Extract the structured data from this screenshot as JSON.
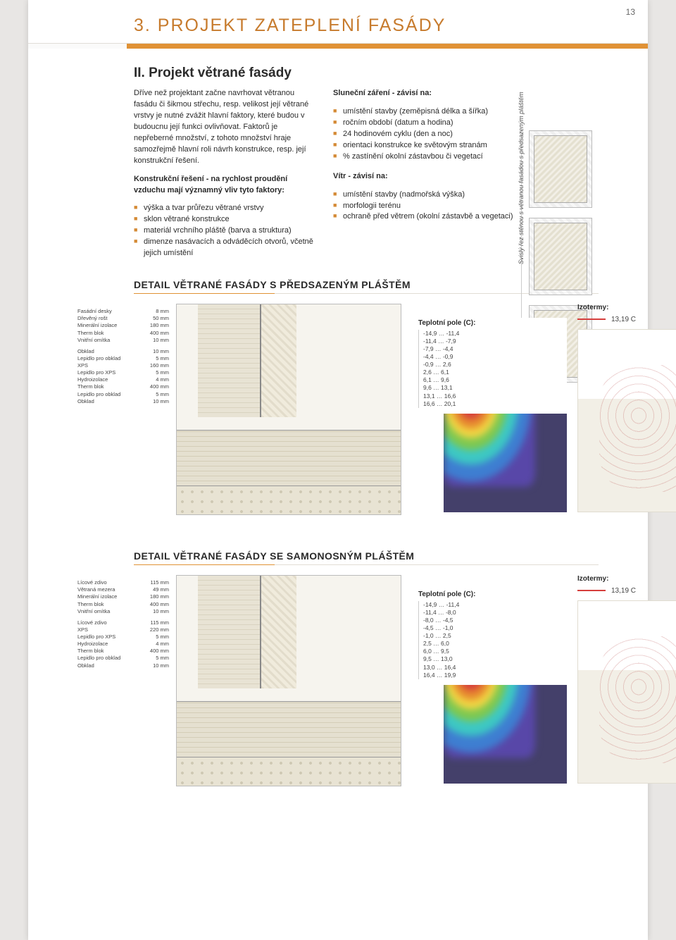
{
  "page_number": "13",
  "main_title": "3. PROJEKT ZATEPLENÍ FASÁDY",
  "section_title": "II. Projekt větrané fasády",
  "intro_text": "Dříve než projektant začne navrhovat větranou fasádu či šikmou střechu, resp. velikost její větrané vrstvy je nutné zvážit hlavní faktory, které budou v budoucnu její funkci ovlivňovat. Faktorů je nepřeberné množství, z tohoto množství hraje samozřejmě hlavní roli návrh konstrukce, resp. její konstrukční řešení.",
  "konstr_lead": "Konstrukční řešení - na rychlost proudění vzduchu mají významný vliv tyto faktory:",
  "konstr_items": [
    "výška a tvar průřezu větrané vrstvy",
    "sklon větrané konstrukce",
    "materiál vrchního pláště (barva a struktura)",
    "dimenze nasávacích a odváděcích otvorů, včetně jejich umístění"
  ],
  "sun_lead": "Sluneční záření - závisí na:",
  "sun_items": [
    "umístění stavby (zeměpisná délka a šířka)",
    "ročním období (datum a hodina)",
    "24 hodinovém cyklu (den a noc)",
    "orientaci konstrukce ke světovým stranám",
    "% zastínění okolní zástavbou či vegetací"
  ],
  "wind_lead": "Vítr - závisí na:",
  "wind_items": [
    "umístění stavby (nadmořská výška)",
    "morfologii terénu",
    "ochraně před větrem (okolní zástavbě a vegetaci)"
  ],
  "side_caption": "Svislý řez stěnou s větranou fasádou s předsazeným pláštěm",
  "detail1_heading": "DETAIL VĚTRANÉ FASÁDY S PŘEDSAZENÝM PLÁŠTĚM",
  "detail2_heading": "DETAIL VĚTRANÉ FASÁDY SE SAMONOSNÝM PLÁŠTĚM",
  "layers1": [
    [
      "Fasádní desky",
      "8 mm"
    ],
    [
      "Dřevěný rošt",
      "50 mm"
    ],
    [
      "Minerální izolace",
      "180 mm"
    ],
    [
      "Therm blok",
      "400 mm"
    ],
    [
      "Vnitřní omítka",
      "10 mm"
    ],
    [
      "gap",
      ""
    ],
    [
      "Obklad",
      "10 mm"
    ],
    [
      "Lepidlo pro obklad",
      "5 mm"
    ],
    [
      "XPS",
      "160 mm"
    ],
    [
      "Lepidlo pro XPS",
      "5 mm"
    ],
    [
      "Hydroizolace",
      "4 mm"
    ],
    [
      "Therm blok",
      "400 mm"
    ],
    [
      "Lepidlo pro obklad",
      "5 mm"
    ],
    [
      "Obklad",
      "10 mm"
    ]
  ],
  "layers2": [
    [
      "Lícové zdivo",
      "115 mm"
    ],
    [
      "Větraná mezera",
      "49 mm"
    ],
    [
      "Minerální izolace",
      "180 mm"
    ],
    [
      "Therm blok",
      "400 mm"
    ],
    [
      "Vnitřní omítka",
      "10 mm"
    ],
    [
      "gap",
      ""
    ],
    [
      "Lícové zdivo",
      "115 mm"
    ],
    [
      "XPS",
      "220 mm"
    ],
    [
      "Lepidlo pro XPS",
      "5 mm"
    ],
    [
      "Hydroizolace",
      "4 mm"
    ],
    [
      "Therm blok",
      "400 mm"
    ],
    [
      "Lepidlo pro obklad",
      "5 mm"
    ],
    [
      "Obklad",
      "10 mm"
    ]
  ],
  "thermal_title": "Teplotní pole (C):",
  "thermal_ranges1": [
    "-14,9 … -11,4",
    "-11,4 … -7,9",
    "-7,9 … -4,4",
    "-4,4 … -0,9",
    "-0,9 … 2,6",
    "2,6 … 6,1",
    "6,1 … 9,6",
    "9,6 … 13,1",
    "13,1 … 16,6",
    "16,6 … 20,1"
  ],
  "thermal_ranges2": [
    "-14,9 … -11,4",
    "-11,4 … -8,0",
    "-8,0 … -4,5",
    "-4,5 … -1,0",
    "-1,0 … 2,5",
    "2,5 … 6,0",
    "6,0 … 9,5",
    "9,5 … 13,0",
    "13,0 … 16,4",
    "16,4 … 19,9"
  ],
  "iso_title": "Izotermy:",
  "iso_value": "13,19 C",
  "colors": {
    "accent": "#d48a35",
    "heading": "#c77b2d",
    "iso_line": "#d63e3c"
  }
}
